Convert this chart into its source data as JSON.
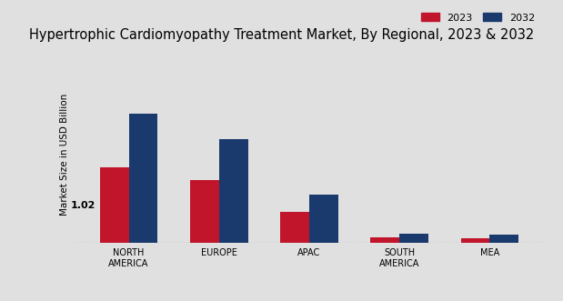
{
  "title": "Hypertrophic Cardiomyopathy Treatment Market, By Regional, 2023 & 2032",
  "categories": [
    "NORTH\nAMERICA",
    "EUROPE",
    "APAC",
    "SOUTH\nAMERICA",
    "MEA"
  ],
  "values_2023": [
    1.02,
    0.85,
    0.42,
    0.07,
    0.06
  ],
  "values_2032": [
    1.75,
    1.4,
    0.65,
    0.12,
    0.11
  ],
  "color_2023": "#c0152a",
  "color_2032": "#1a3a6e",
  "annotation_value": "1.02",
  "ylabel": "Market Size in USD Billion",
  "legend_labels": [
    "2023",
    "2032"
  ],
  "background_color": "#e0e0e0",
  "bar_width": 0.32,
  "ylim": [
    0,
    2.4
  ],
  "title_fontsize": 10.5,
  "axis_label_fontsize": 7.5,
  "tick_fontsize": 7,
  "footer_color": "#bb1122"
}
